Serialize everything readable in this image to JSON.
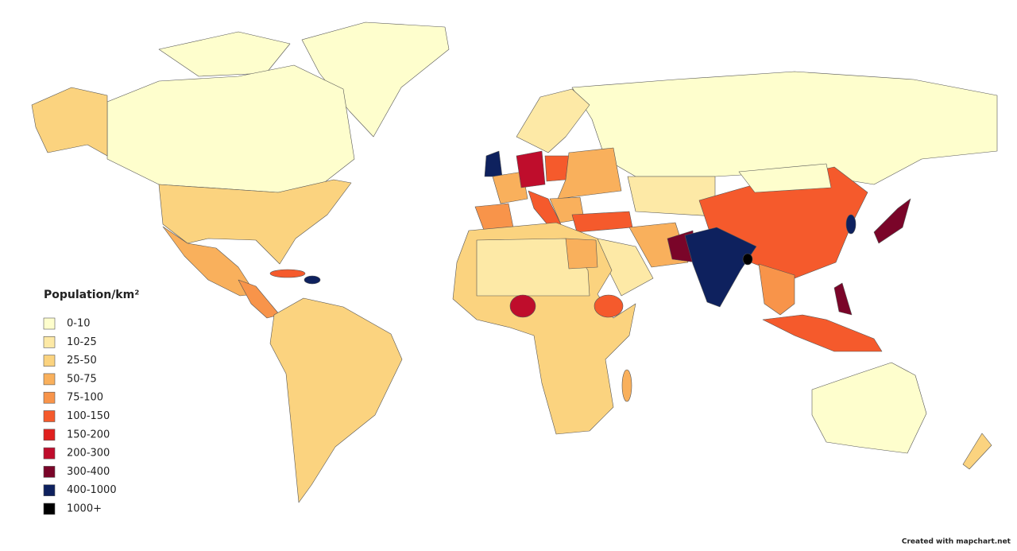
{
  "legend": {
    "title": "Population/km²",
    "items": [
      {
        "label": "0-10",
        "color": "#fefecd"
      },
      {
        "label": "10-25",
        "color": "#fde9a6"
      },
      {
        "label": "25-50",
        "color": "#fbd37f"
      },
      {
        "label": "50-75",
        "color": "#f9b05c"
      },
      {
        "label": "75-100",
        "color": "#f8944a"
      },
      {
        "label": "100-150",
        "color": "#f55a2c"
      },
      {
        "label": "150-200",
        "color": "#e0201e"
      },
      {
        "label": "200-300",
        "color": "#bf0d2c"
      },
      {
        "label": "300-400",
        "color": "#7a0529"
      },
      {
        "label": "400-1000",
        "color": "#0e215e"
      },
      {
        "label": "1000+",
        "color": "#000000"
      }
    ]
  },
  "credit": "Created with mapchart.net"
}
